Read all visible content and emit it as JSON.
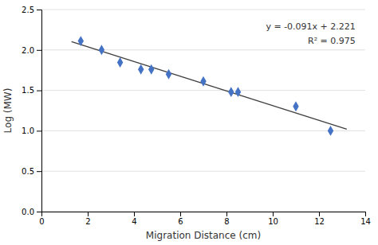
{
  "chart_data": {
    "type": "scatter",
    "xlabel": "Migration Distance (cm)",
    "ylabel": "Log (MW)",
    "series": [
      {
        "type": "scatter",
        "marker": "diamond",
        "color": "#4472c4",
        "x": [
          1.7,
          2.6,
          3.4,
          4.3,
          4.75,
          5.5,
          7.0,
          8.2,
          8.5,
          11.0,
          12.5
        ],
        "values": [
          2.11,
          2.0,
          1.845,
          1.76,
          1.76,
          1.7,
          1.612,
          1.48,
          1.48,
          1.301,
          1.0
        ]
      },
      {
        "type": "line",
        "line_style": "solid",
        "color": "#404040",
        "x": [
          1.3,
          13.2
        ],
        "values": [
          2.1027,
          1.0198
        ]
      }
    ],
    "annotations": [
      "y = -0.091x + 2.221",
      "R² = 0.975"
    ],
    "xlim": [
      0,
      14
    ],
    "ylim": [
      0,
      2.5
    ],
    "xticks": [
      0,
      2,
      4,
      6,
      8,
      10,
      12,
      14
    ],
    "yticks": [
      {
        "value": 0,
        "label": "0.0"
      },
      0.5,
      {
        "value": 1,
        "label": "1.0"
      },
      1.5,
      {
        "value": 2,
        "label": "2.0"
      },
      2.5
    ],
    "grid": "y"
  }
}
